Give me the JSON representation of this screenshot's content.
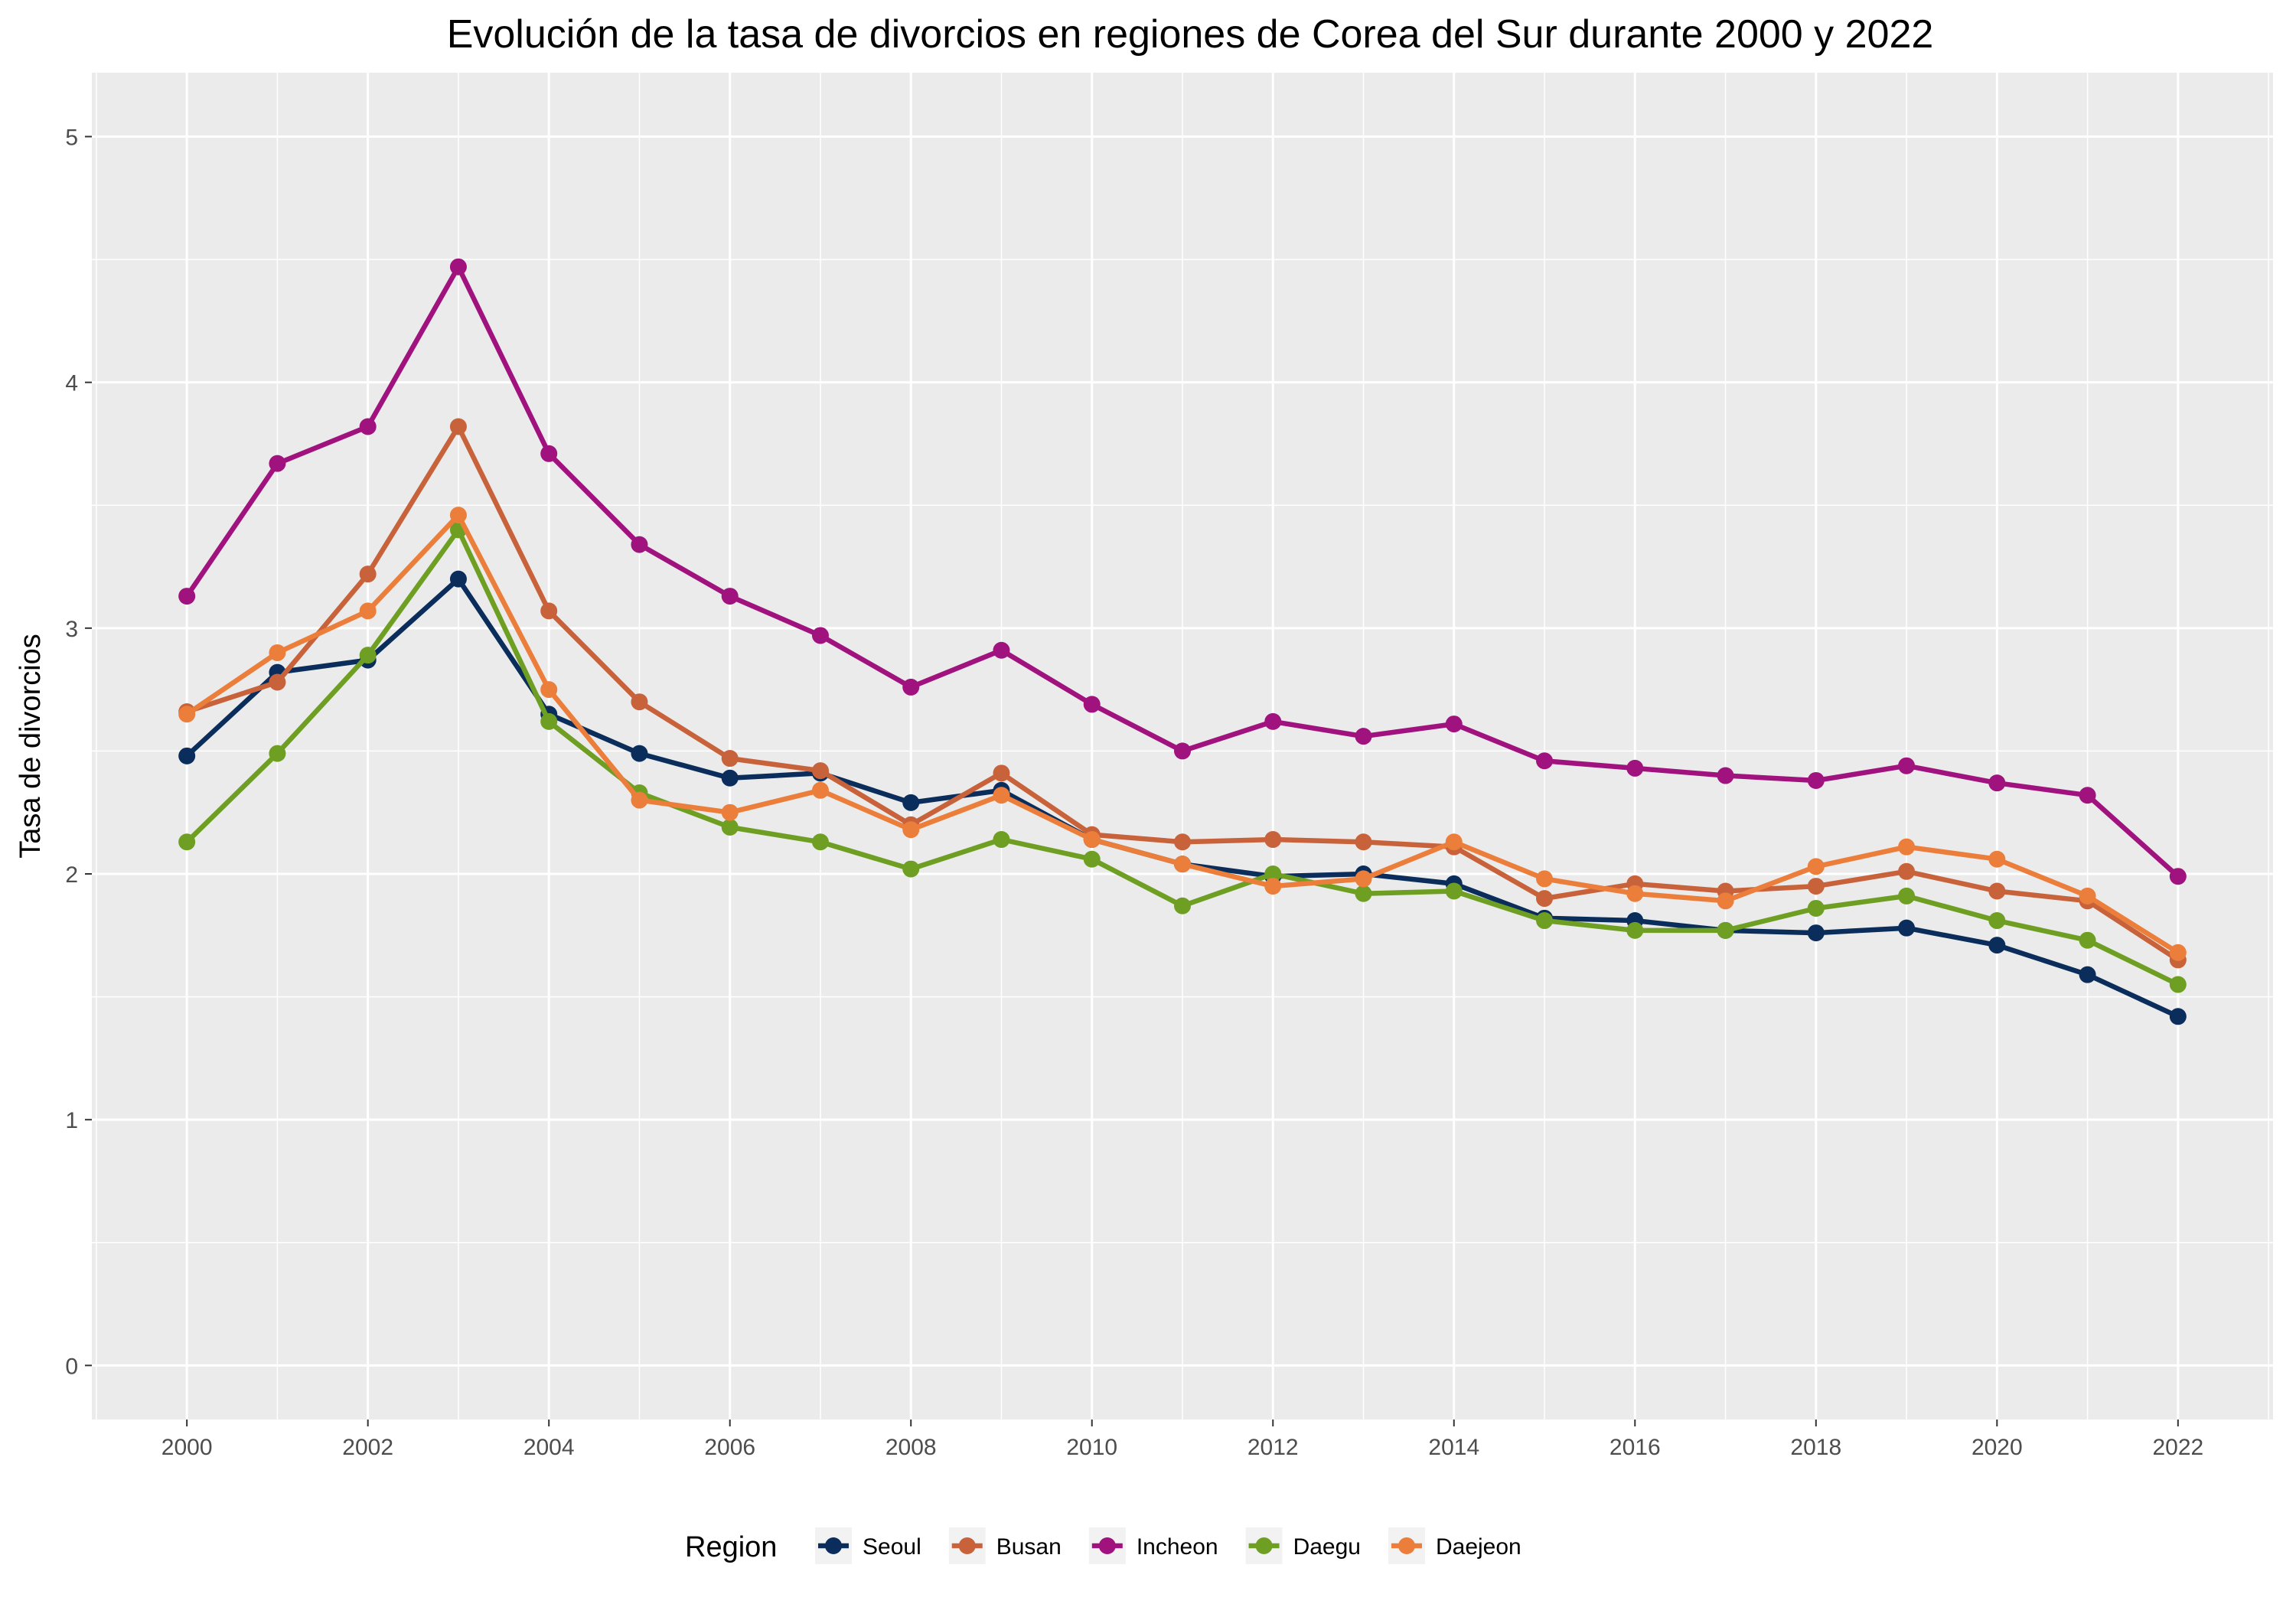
{
  "chart_data": {
    "type": "line",
    "title": "Evolución de la tasa de divorcios en regiones de Corea del Sur durante 2000 y 2022",
    "xlabel": "",
    "ylabel": "Tasa de divorcios",
    "x": [
      2000,
      2001,
      2002,
      2003,
      2004,
      2005,
      2006,
      2007,
      2008,
      2009,
      2010,
      2011,
      2012,
      2013,
      2014,
      2015,
      2016,
      2017,
      2018,
      2019,
      2020,
      2021,
      2022
    ],
    "x_ticks": [
      "2000",
      "2002",
      "2004",
      "2006",
      "2008",
      "2010",
      "2012",
      "2014",
      "2016",
      "2018",
      "2020",
      "2022"
    ],
    "y_ticks": [
      "0",
      "1",
      "2",
      "3",
      "4",
      "5"
    ],
    "xlim": [
      1998.95,
      2023.05
    ],
    "ylim": [
      -0.22,
      5.26
    ],
    "grid": true,
    "legend": {
      "title": "Region",
      "position": "bottom"
    },
    "series": [
      {
        "name": "Seoul",
        "color": "#0a2d5c",
        "values": [
          2.48,
          2.82,
          2.87,
          3.2,
          2.65,
          2.49,
          2.39,
          2.41,
          2.29,
          2.34,
          2.14,
          2.04,
          1.99,
          2.0,
          1.96,
          1.82,
          1.81,
          1.77,
          1.76,
          1.78,
          1.71,
          1.59,
          1.42
        ]
      },
      {
        "name": "Busan",
        "color": "#c8623a",
        "values": [
          2.66,
          2.78,
          3.22,
          3.82,
          3.07,
          2.7,
          2.47,
          2.42,
          2.2,
          2.41,
          2.16,
          2.13,
          2.14,
          2.13,
          2.11,
          1.9,
          1.96,
          1.93,
          1.95,
          2.01,
          1.93,
          1.89,
          1.65
        ]
      },
      {
        "name": "Incheon",
        "color": "#a0127e",
        "values": [
          3.13,
          3.67,
          3.82,
          4.47,
          3.71,
          3.34,
          3.13,
          2.97,
          2.76,
          2.91,
          2.69,
          2.5,
          2.62,
          2.56,
          2.61,
          2.46,
          2.43,
          2.4,
          2.38,
          2.44,
          2.37,
          2.32,
          1.99
        ]
      },
      {
        "name": "Daegu",
        "color": "#6e9f23",
        "values": [
          2.13,
          2.49,
          2.89,
          3.4,
          2.62,
          2.33,
          2.19,
          2.13,
          2.02,
          2.14,
          2.06,
          1.87,
          2.0,
          1.92,
          1.93,
          1.81,
          1.77,
          1.77,
          1.86,
          1.91,
          1.81,
          1.73,
          1.55
        ]
      },
      {
        "name": "Daejeon",
        "color": "#ec7e3b",
        "values": [
          2.65,
          2.9,
          3.07,
          3.46,
          2.75,
          2.3,
          2.25,
          2.34,
          2.18,
          2.32,
          2.14,
          2.04,
          1.95,
          1.98,
          2.13,
          1.98,
          1.92,
          1.89,
          2.03,
          2.11,
          2.06,
          1.91,
          1.68
        ]
      }
    ]
  }
}
